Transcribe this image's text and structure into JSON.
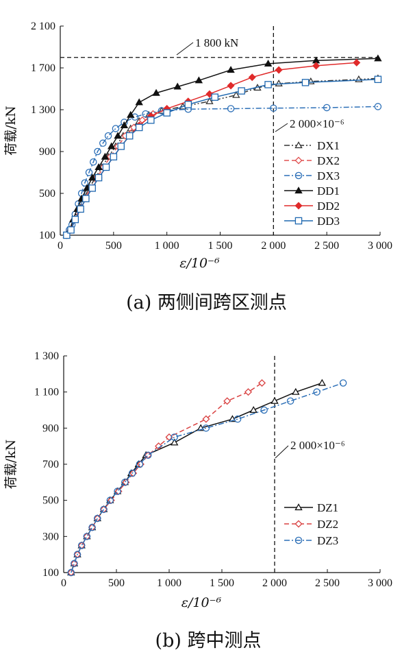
{
  "chart_data": [
    {
      "type": "line",
      "caption": "(a) 两侧间跨区测点",
      "ylabel": "荷载/kN",
      "xlabel": "ε/10⁻⁶",
      "xlim": [
        0,
        3000
      ],
      "ylim": [
        100,
        2100
      ],
      "x_ticks": [
        0,
        500,
        1000,
        1500,
        2000,
        2500,
        3000
      ],
      "x_tick_labels": [
        "0",
        "500",
        "1 000",
        "1 500",
        "2 000",
        "2 500",
        "3 000"
      ],
      "y_ticks": [
        100,
        500,
        900,
        1300,
        1700,
        2100
      ],
      "y_tick_labels": [
        "100",
        "500",
        "900",
        "1 300",
        "1 700",
        "2 100"
      ],
      "legend_position": "right",
      "reference_lines": [
        {
          "orientation": "horizontal",
          "value": 1800,
          "label": "1 800 kN"
        },
        {
          "orientation": "vertical",
          "value": 2000,
          "label": "2 000×10⁻⁶"
        }
      ],
      "series": [
        {
          "name": "DX1",
          "color": "#333333",
          "dash": "8 3 2 3 2 3",
          "marker": "triangle-open",
          "x": [
            60,
            90,
            130,
            170,
            220,
            270,
            330,
            390,
            450,
            520,
            590,
            660,
            740,
            830,
            950,
            1150,
            1400,
            1650,
            1850,
            2050,
            2350,
            2800,
            2980
          ],
          "y": [
            100,
            150,
            250,
            350,
            450,
            550,
            650,
            750,
            850,
            950,
            1050,
            1120,
            1190,
            1250,
            1290,
            1330,
            1380,
            1440,
            1510,
            1550,
            1570,
            1590,
            1600
          ]
        },
        {
          "name": "DX2",
          "color": "#e05050",
          "dash": "7 4",
          "marker": "diamond-open",
          "x": [
            60,
            95,
            135,
            180,
            230,
            285,
            345,
            405,
            470,
            540,
            610,
            690,
            770,
            870,
            1000
          ],
          "y": [
            100,
            150,
            250,
            350,
            450,
            550,
            650,
            750,
            850,
            950,
            1050,
            1130,
            1200,
            1260,
            1300
          ]
        },
        {
          "name": "DX3",
          "color": "#2c6fb7",
          "dash": "8 3 2 3",
          "marker": "circle-open",
          "x": [
            60,
            85,
            110,
            140,
            170,
            200,
            230,
            270,
            310,
            350,
            400,
            450,
            520,
            600,
            700,
            800,
            950,
            1200,
            1600,
            2000,
            2500,
            2980
          ],
          "y": [
            100,
            150,
            200,
            300,
            400,
            500,
            600,
            700,
            800,
            900,
            980,
            1050,
            1120,
            1180,
            1230,
            1260,
            1290,
            1305,
            1310,
            1315,
            1320,
            1330
          ]
        },
        {
          "name": "DD1",
          "color": "#111111",
          "dash": "",
          "marker": "triangle-filled",
          "x": [
            60,
            90,
            120,
            160,
            200,
            250,
            300,
            360,
            420,
            480,
            540,
            600,
            660,
            740,
            900,
            1100,
            1300,
            1600,
            1950,
            2400,
            2980
          ],
          "y": [
            100,
            150,
            250,
            350,
            450,
            550,
            650,
            750,
            850,
            950,
            1050,
            1150,
            1250,
            1370,
            1460,
            1520,
            1580,
            1680,
            1740,
            1770,
            1790
          ]
        },
        {
          "name": "DD2",
          "color": "#e02a2a",
          "dash": "",
          "marker": "diamond-filled",
          "x": [
            60,
            100,
            140,
            190,
            240,
            300,
            360,
            430,
            500,
            570,
            650,
            740,
            850,
            1000,
            1200,
            1400,
            1600,
            1800,
            2050,
            2400,
            2780
          ],
          "y": [
            100,
            150,
            250,
            350,
            450,
            550,
            650,
            750,
            850,
            950,
            1050,
            1150,
            1240,
            1310,
            1380,
            1450,
            1530,
            1610,
            1680,
            1720,
            1750
          ]
        },
        {
          "name": "DD3",
          "color": "#1f68b0",
          "dash": "",
          "marker": "square-open",
          "x": [
            60,
            100,
            140,
            190,
            240,
            300,
            360,
            430,
            500,
            570,
            650,
            740,
            850,
            1000,
            1200,
            1450,
            1700,
            1950,
            2300,
            2980
          ],
          "y": [
            100,
            150,
            250,
            350,
            450,
            550,
            650,
            750,
            850,
            950,
            1050,
            1130,
            1200,
            1270,
            1350,
            1420,
            1480,
            1540,
            1560,
            1590
          ]
        }
      ]
    },
    {
      "type": "line",
      "caption": "(b) 跨中测点",
      "ylabel": "荷载/kN",
      "xlabel": "ε/10⁻⁶",
      "xlim": [
        0,
        3000
      ],
      "ylim": [
        100,
        1300
      ],
      "x_ticks": [
        0,
        500,
        1000,
        1500,
        2000,
        2500,
        3000
      ],
      "x_tick_labels": [
        "0",
        "500",
        "1 000",
        "1 500",
        "2 000",
        "2 500",
        "3 000"
      ],
      "y_ticks": [
        100,
        300,
        500,
        700,
        900,
        1100,
        1300
      ],
      "y_tick_labels": [
        "100",
        "300",
        "500",
        "700",
        "900",
        "1 100",
        "1 300"
      ],
      "legend_position": "right",
      "reference_lines": [
        {
          "orientation": "vertical",
          "value": 2000,
          "label": "2 000×10⁻⁶"
        }
      ],
      "series": [
        {
          "name": "DZ1",
          "color": "#111111",
          "dash": "",
          "marker": "triangle-open",
          "x": [
            70,
            100,
            130,
            170,
            220,
            270,
            320,
            380,
            440,
            510,
            580,
            640,
            710,
            780,
            1050,
            1300,
            1600,
            1800,
            2000,
            2200,
            2450
          ],
          "y": [
            100,
            150,
            200,
            250,
            300,
            350,
            400,
            450,
            500,
            550,
            600,
            650,
            700,
            750,
            820,
            900,
            950,
            1000,
            1050,
            1100,
            1150
          ]
        },
        {
          "name": "DZ2",
          "color": "#d94040",
          "dash": "7 4",
          "marker": "diamond-open",
          "x": [
            70,
            100,
            130,
            170,
            220,
            270,
            320,
            380,
            450,
            520,
            590,
            660,
            730,
            800,
            900,
            1000,
            1350,
            1550,
            1750,
            1880
          ],
          "y": [
            100,
            150,
            200,
            250,
            300,
            350,
            400,
            450,
            500,
            550,
            600,
            650,
            700,
            750,
            800,
            850,
            950,
            1050,
            1100,
            1150
          ]
        },
        {
          "name": "DZ3",
          "color": "#2c6fb7",
          "dash": "8 3 2 3",
          "marker": "circle-open",
          "x": [
            70,
            100,
            130,
            170,
            220,
            270,
            320,
            380,
            440,
            510,
            580,
            650,
            720,
            800,
            1050,
            1350,
            1650,
            1900,
            2150,
            2400,
            2650
          ],
          "y": [
            100,
            150,
            200,
            250,
            300,
            350,
            400,
            450,
            500,
            550,
            600,
            650,
            700,
            750,
            850,
            900,
            950,
            1000,
            1050,
            1100,
            1150
          ]
        }
      ]
    }
  ]
}
